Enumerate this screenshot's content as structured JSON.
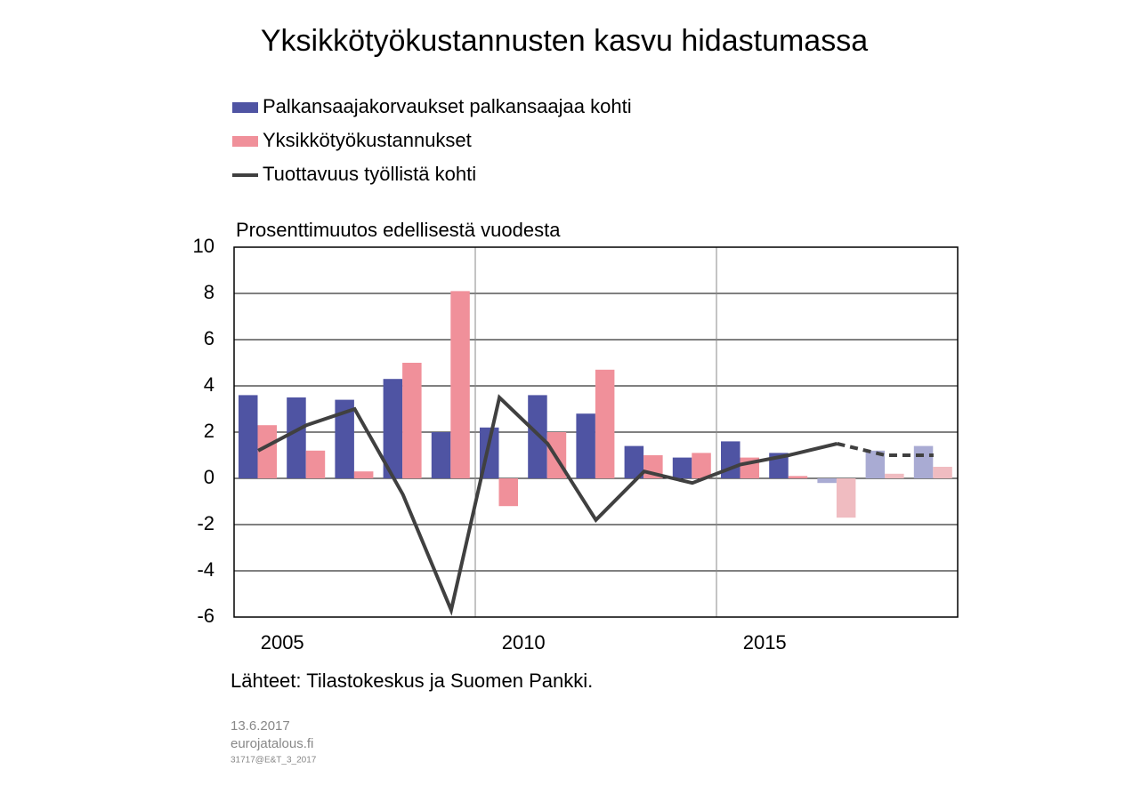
{
  "chart_data": {
    "type": "bar_line",
    "title": "Yksikkötyökustannusten kasvu hidastumassa",
    "y_label": "Prosenttimuutos edellisestä vuodesta",
    "source": "Lähteet: Tilastokeskus ja Suomen Pankki.",
    "footer": [
      "13.6.2017",
      "eurojatalous.fi",
      "31717@E&T_3_2017"
    ],
    "categories": [
      "2005",
      null,
      null,
      null,
      null,
      "2010",
      null,
      null,
      null,
      null,
      "2015",
      null,
      null,
      null,
      null
    ],
    "projection_start": 12,
    "series": [
      {
        "name": "Palkansaajakorvaukset palkansaajaa kohti",
        "type": "bar",
        "color": "#4f54a3",
        "projection_color": "#a9abd3",
        "values": [
          3.6,
          3.5,
          3.4,
          4.3,
          2.0,
          2.2,
          3.6,
          2.8,
          1.4,
          0.9,
          1.6,
          1.1,
          -0.2,
          1.2,
          1.4
        ]
      },
      {
        "name": "Yksikkötyökustannukset",
        "type": "bar",
        "color": "#f0909a",
        "projection_color": "#f0bcc1",
        "values": [
          2.3,
          1.2,
          0.3,
          5.0,
          8.1,
          -1.2,
          2.0,
          4.7,
          1.0,
          1.1,
          0.9,
          0.1,
          -1.7,
          0.2,
          0.5
        ]
      },
      {
        "name": "Tuottavuus työllistä kohti",
        "type": "line",
        "color": "#404040",
        "values": [
          1.2,
          2.3,
          3.0,
          -0.7,
          -5.7,
          3.5,
          1.5,
          -1.8,
          0.3,
          -0.2,
          0.6,
          1.0,
          1.5,
          1.0,
          1.0
        ]
      }
    ],
    "ylim": [
      -6,
      10
    ],
    "yticks": [
      -6,
      -4,
      -2,
      0,
      2,
      4,
      6,
      8,
      10
    ],
    "grid": true
  }
}
